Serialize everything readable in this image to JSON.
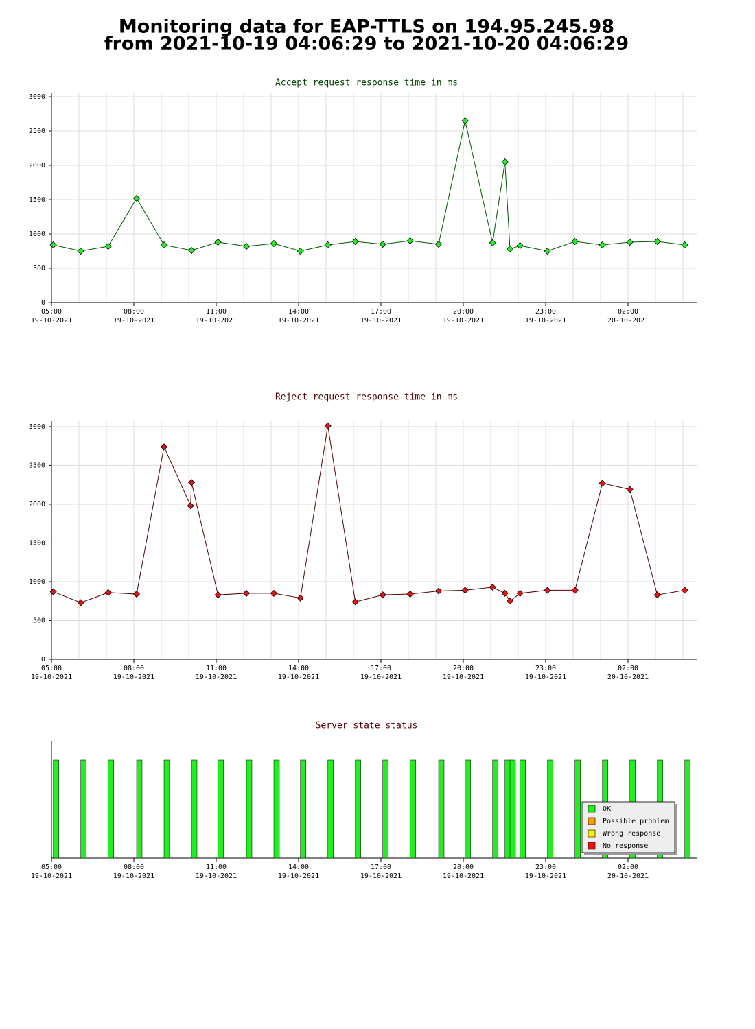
{
  "title": "Monitoring data for EAP-TTLS on 194.95.245.98",
  "subtitle": "from 2021-10-19 04:06:29 to 2021-10-20 04:06:29",
  "chart_data": [
    {
      "type": "line",
      "title": "Accept request response time in ms",
      "title_color": "#004400",
      "color": "#005500",
      "marker_color": "#22ee22",
      "x": [
        "2021-10-19 05:04",
        "2021-10-19 06:04",
        "2021-10-19 07:04",
        "2021-10-19 08:06",
        "2021-10-19 09:06",
        "2021-10-19 10:06",
        "2021-10-19 11:04",
        "2021-10-19 12:06",
        "2021-10-19 13:06",
        "2021-10-19 14:04",
        "2021-10-19 15:04",
        "2021-10-19 16:04",
        "2021-10-19 17:04",
        "2021-10-19 18:04",
        "2021-10-19 19:06",
        "2021-10-19 20:04",
        "2021-10-19 21:04",
        "2021-10-19 21:31",
        "2021-10-19 21:42",
        "2021-10-19 22:04",
        "2021-10-19 23:04",
        "2021-10-20 00:04",
        "2021-10-20 01:04",
        "2021-10-20 02:04",
        "2021-10-20 03:04",
        "2021-10-20 04:04"
      ],
      "values": [
        840,
        750,
        820,
        1520,
        840,
        760,
        880,
        820,
        860,
        750,
        840,
        890,
        850,
        900,
        850,
        2650,
        870,
        2050,
        780,
        830,
        750,
        890,
        840,
        880,
        890,
        840
      ],
      "xlim": [
        "2021-10-19 05:00",
        "2021-10-20 04:30"
      ],
      "xticks": [
        {
          "value": "2021-10-19 05:00",
          "label": "05:00",
          "sublabel": "19-10-2021"
        },
        {
          "value": "2021-10-19 08:00",
          "label": "08:00",
          "sublabel": "19-10-2021"
        },
        {
          "value": "2021-10-19 11:00",
          "label": "11:00",
          "sublabel": "19-10-2021"
        },
        {
          "value": "2021-10-19 14:00",
          "label": "14:00",
          "sublabel": "19-10-2021"
        },
        {
          "value": "2021-10-19 17:00",
          "label": "17:00",
          "sublabel": "19-10-2021"
        },
        {
          "value": "2021-10-19 20:00",
          "label": "20:00",
          "sublabel": "19-10-2021"
        },
        {
          "value": "2021-10-19 23:00",
          "label": "23:00",
          "sublabel": "19-10-2021"
        },
        {
          "value": "2021-10-20 02:00",
          "label": "02:00",
          "sublabel": "20-10-2021"
        }
      ],
      "xminorticks": [
        "2021-10-19 06:00",
        "2021-10-19 07:00",
        "2021-10-19 09:00",
        "2021-10-19 10:00",
        "2021-10-19 12:00",
        "2021-10-19 13:00",
        "2021-10-19 15:00",
        "2021-10-19 16:00",
        "2021-10-19 18:00",
        "2021-10-19 19:00",
        "2021-10-19 21:00",
        "2021-10-19 22:00",
        "2021-10-20 00:00",
        "2021-10-20 01:00",
        "2021-10-20 03:00",
        "2021-10-20 04:00"
      ],
      "ylim": [
        0,
        3050
      ],
      "yticks": [
        0,
        500,
        1000,
        1500,
        2000,
        2500,
        3000
      ],
      "grid": true
    },
    {
      "type": "line",
      "title": "Reject request response time in ms",
      "title_color": "#550000",
      "color": "#550000",
      "marker_color": "#ee1111",
      "x": [
        "2021-10-19 05:04",
        "2021-10-19 06:04",
        "2021-10-19 07:04",
        "2021-10-19 08:06",
        "2021-10-19 09:06",
        "2021-10-19 10:04",
        "2021-10-19 10:06",
        "2021-10-19 11:04",
        "2021-10-19 12:06",
        "2021-10-19 13:06",
        "2021-10-19 14:04",
        "2021-10-19 15:04",
        "2021-10-19 16:04",
        "2021-10-19 17:04",
        "2021-10-19 18:04",
        "2021-10-19 19:06",
        "2021-10-19 20:04",
        "2021-10-19 21:04",
        "2021-10-19 21:31",
        "2021-10-19 21:42",
        "2021-10-19 22:04",
        "2021-10-19 23:04",
        "2021-10-20 00:04",
        "2021-10-20 01:04",
        "2021-10-20 02:04",
        "2021-10-20 03:04",
        "2021-10-20 04:04"
      ],
      "values": [
        870,
        730,
        860,
        840,
        2740,
        1980,
        2280,
        830,
        850,
        850,
        790,
        3010,
        740,
        830,
        840,
        880,
        890,
        930,
        850,
        750,
        850,
        890,
        890,
        2270,
        2190,
        830,
        890
      ],
      "xlim": [
        "2021-10-19 05:00",
        "2021-10-20 04:30"
      ],
      "xticks": [
        {
          "value": "2021-10-19 05:00",
          "label": "05:00",
          "sublabel": "19-10-2021"
        },
        {
          "value": "2021-10-19 08:00",
          "label": "08:00",
          "sublabel": "19-10-2021"
        },
        {
          "value": "2021-10-19 11:00",
          "label": "11:00",
          "sublabel": "19-10-2021"
        },
        {
          "value": "2021-10-19 14:00",
          "label": "14:00",
          "sublabel": "19-10-2021"
        },
        {
          "value": "2021-10-19 17:00",
          "label": "17:00",
          "sublabel": "19-10-2021"
        },
        {
          "value": "2021-10-19 20:00",
          "label": "20:00",
          "sublabel": "19-10-2021"
        },
        {
          "value": "2021-10-19 23:00",
          "label": "23:00",
          "sublabel": "19-10-2021"
        },
        {
          "value": "2021-10-20 02:00",
          "label": "02:00",
          "sublabel": "20-10-2021"
        }
      ],
      "xminorticks": [
        "2021-10-19 06:00",
        "2021-10-19 07:00",
        "2021-10-19 09:00",
        "2021-10-19 10:00",
        "2021-10-19 12:00",
        "2021-10-19 13:00",
        "2021-10-19 15:00",
        "2021-10-19 16:00",
        "2021-10-19 18:00",
        "2021-10-19 19:00",
        "2021-10-19 21:00",
        "2021-10-19 22:00",
        "2021-10-20 00:00",
        "2021-10-20 01:00",
        "2021-10-20 03:00",
        "2021-10-20 04:00"
      ],
      "ylim": [
        0,
        3070
      ],
      "yticks": [
        0,
        500,
        1000,
        1500,
        2000,
        2500,
        3000
      ],
      "grid": true
    },
    {
      "type": "status",
      "title": "Server state status",
      "title_color": "#550000",
      "x": [
        "2021-10-19 05:04",
        "2021-10-19 06:04",
        "2021-10-19 07:04",
        "2021-10-19 08:06",
        "2021-10-19 09:06",
        "2021-10-19 10:06",
        "2021-10-19 11:04",
        "2021-10-19 12:06",
        "2021-10-19 13:06",
        "2021-10-19 14:04",
        "2021-10-19 15:04",
        "2021-10-19 16:04",
        "2021-10-19 17:04",
        "2021-10-19 18:04",
        "2021-10-19 19:06",
        "2021-10-19 20:04",
        "2021-10-19 21:04",
        "2021-10-19 21:31",
        "2021-10-19 21:42",
        "2021-10-19 22:04",
        "2021-10-19 23:04",
        "2021-10-20 00:04",
        "2021-10-20 01:04",
        "2021-10-20 02:04",
        "2021-10-20 03:04",
        "2021-10-20 04:04"
      ],
      "values": [
        "OK",
        "OK",
        "OK",
        "OK",
        "OK",
        "OK",
        "OK",
        "OK",
        "OK",
        "OK",
        "OK",
        "OK",
        "OK",
        "OK",
        "OK",
        "OK",
        "OK",
        "OK",
        "OK",
        "OK",
        "OK",
        "OK",
        "OK",
        "OK",
        "OK",
        "OK"
      ],
      "xlim": [
        "2021-10-19 05:00",
        "2021-10-20 04:30"
      ],
      "xticks": [
        {
          "value": "2021-10-19 05:00",
          "label": "05:00",
          "sublabel": "19-10-2021"
        },
        {
          "value": "2021-10-19 08:00",
          "label": "08:00",
          "sublabel": "19-10-2021"
        },
        {
          "value": "2021-10-19 11:00",
          "label": "11:00",
          "sublabel": "19-10-2021"
        },
        {
          "value": "2021-10-19 14:00",
          "label": "14:00",
          "sublabel": "19-10-2021"
        },
        {
          "value": "2021-10-19 17:00",
          "label": "17:00",
          "sublabel": "19-10-2021"
        },
        {
          "value": "2021-10-19 20:00",
          "label": "20:00",
          "sublabel": "19-10-2021"
        },
        {
          "value": "2021-10-19 23:00",
          "label": "23:00",
          "sublabel": "19-10-2021"
        },
        {
          "value": "2021-10-20 02:00",
          "label": "02:00",
          "sublabel": "20-10-2021"
        }
      ],
      "legend_items": [
        {
          "name": "OK",
          "color": "#22ee22"
        },
        {
          "name": "Possible problem",
          "color": "#ff9900"
        },
        {
          "name": "Wrong response",
          "color": "#ffee00"
        },
        {
          "name": "No response",
          "color": "#ee1111"
        }
      ],
      "legend": "lower right",
      "grid": false
    }
  ]
}
